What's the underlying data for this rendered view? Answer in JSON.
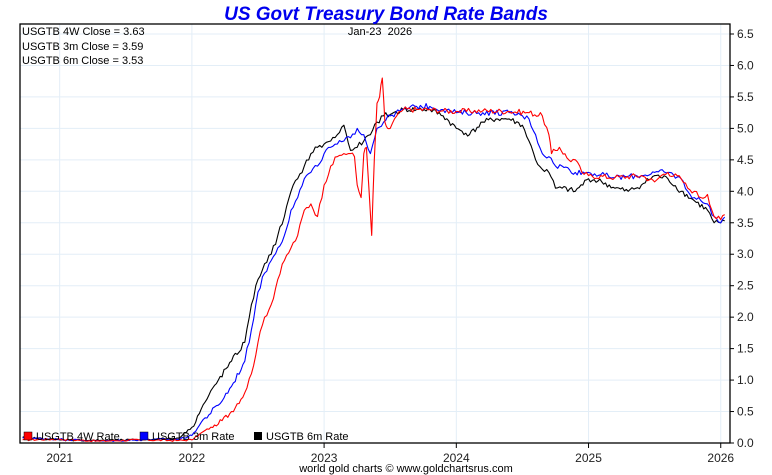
{
  "chart_data": {
    "type": "line",
    "title": "US Govt Treasury Bond Rate Bands",
    "date_label": "Jan-23  2026",
    "credit": "world gold charts © www.goldchartsrus.com",
    "closes": [
      "USGTB 4W Close = 3.63",
      "USGTB 3m Close = 3.59",
      "USGTB 6m Close = 3.53"
    ],
    "xlim": [
      2020.7,
      2026.07
    ],
    "ylim": [
      0,
      6.5
    ],
    "x_ticks": [
      "2021",
      "2022",
      "2023",
      "2024",
      "2025",
      "2026"
    ],
    "x_tick_values": [
      2021,
      2022,
      2023,
      2024,
      2025,
      2026
    ],
    "y_ticks": [
      "0.0",
      "0.5",
      "1.0",
      "1.5",
      "2.0",
      "2.5",
      "3.0",
      "3.5",
      "4.0",
      "4.5",
      "5.0",
      "5.5",
      "6.0",
      "6.5"
    ],
    "y_tick_values": [
      0,
      0.5,
      1,
      1.5,
      2,
      2.5,
      3,
      3.5,
      4,
      4.5,
      5,
      5.5,
      6,
      6.5
    ],
    "grid": true,
    "legend_position": "bottom-left",
    "series": [
      {
        "name": "USGTB 4W Rate",
        "color": "#ff0000",
        "x": [
          2020.72,
          2021.0,
          2021.3,
          2021.6,
          2021.9,
          2022.0,
          2022.1,
          2022.2,
          2022.3,
          2022.4,
          2022.45,
          2022.5,
          2022.55,
          2022.6,
          2022.65,
          2022.7,
          2022.75,
          2022.8,
          2022.85,
          2022.9,
          2022.95,
          2023.0,
          2023.05,
          2023.1,
          2023.15,
          2023.2,
          2023.23,
          2023.25,
          2023.28,
          2023.3,
          2023.32,
          2023.34,
          2023.36,
          2023.38,
          2023.4,
          2023.42,
          2023.44,
          2023.46,
          2023.48,
          2023.5,
          2023.55,
          2023.6,
          2023.7,
          2023.8,
          2023.9,
          2024.0,
          2024.2,
          2024.4,
          2024.55,
          2024.65,
          2024.7,
          2024.72,
          2024.78,
          2024.85,
          2024.9,
          2024.95,
          2025.0,
          2025.2,
          2025.4,
          2025.5,
          2025.55,
          2025.6,
          2025.7,
          2025.75,
          2025.8,
          2025.85,
          2025.9,
          2025.95,
          2026.0,
          2026.03
        ],
        "y": [
          0.05,
          0.06,
          0.03,
          0.05,
          0.04,
          0.05,
          0.2,
          0.3,
          0.5,
          0.8,
          1.1,
          1.6,
          2.0,
          2.2,
          2.6,
          2.9,
          3.1,
          3.3,
          3.7,
          3.8,
          3.6,
          4.1,
          4.4,
          4.55,
          4.6,
          4.6,
          4.55,
          4.1,
          3.9,
          4.6,
          4.7,
          4.0,
          3.3,
          4.5,
          5.4,
          5.5,
          5.8,
          5.1,
          5.0,
          5.0,
          5.2,
          5.3,
          5.3,
          5.3,
          5.28,
          5.27,
          5.28,
          5.27,
          5.25,
          5.2,
          4.9,
          4.6,
          4.7,
          4.5,
          4.5,
          4.3,
          4.25,
          4.22,
          4.25,
          4.15,
          4.25,
          4.3,
          4.2,
          4.05,
          4.0,
          3.9,
          3.95,
          3.6,
          3.55,
          3.63
        ]
      },
      {
        "name": "USGTB 3m Rate",
        "color": "#0000ff",
        "x": [
          2020.72,
          2021.0,
          2021.3,
          2021.6,
          2021.9,
          2022.0,
          2022.1,
          2022.2,
          2022.3,
          2022.4,
          2022.45,
          2022.5,
          2022.55,
          2022.6,
          2022.65,
          2022.7,
          2022.75,
          2022.8,
          2022.85,
          2022.9,
          2022.95,
          2023.0,
          2023.05,
          2023.1,
          2023.15,
          2023.2,
          2023.25,
          2023.3,
          2023.35,
          2023.4,
          2023.45,
          2023.5,
          2023.6,
          2023.7,
          2023.8,
          2023.9,
          2024.0,
          2024.2,
          2024.4,
          2024.5,
          2024.55,
          2024.6,
          2024.65,
          2024.7,
          2024.75,
          2024.8,
          2024.9,
          2025.0,
          2025.2,
          2025.4,
          2025.5,
          2025.6,
          2025.7,
          2025.75,
          2025.8,
          2025.85,
          2025.9,
          2025.95,
          2026.0,
          2026.03
        ],
        "y": [
          0.08,
          0.06,
          0.03,
          0.05,
          0.06,
          0.12,
          0.4,
          0.6,
          0.9,
          1.3,
          1.8,
          2.4,
          2.7,
          2.9,
          3.1,
          3.3,
          3.7,
          3.9,
          4.2,
          4.3,
          4.4,
          4.6,
          4.7,
          4.75,
          4.8,
          4.85,
          5.0,
          4.9,
          4.6,
          5.0,
          5.1,
          5.2,
          5.3,
          5.35,
          5.35,
          5.3,
          5.25,
          5.25,
          5.25,
          5.2,
          5.15,
          4.9,
          4.6,
          4.55,
          4.4,
          4.4,
          4.3,
          4.3,
          4.22,
          4.25,
          4.3,
          4.3,
          4.2,
          4.0,
          3.9,
          3.85,
          3.8,
          3.6,
          3.5,
          3.59
        ]
      },
      {
        "name": "USGTB 6m Rate",
        "color": "#000000",
        "x": [
          2020.72,
          2021.0,
          2021.3,
          2021.6,
          2021.9,
          2022.0,
          2022.1,
          2022.2,
          2022.3,
          2022.4,
          2022.45,
          2022.5,
          2022.55,
          2022.6,
          2022.65,
          2022.7,
          2022.75,
          2022.8,
          2022.85,
          2022.9,
          2022.95,
          2023.0,
          2023.05,
          2023.1,
          2023.15,
          2023.2,
          2023.25,
          2023.3,
          2023.35,
          2023.4,
          2023.45,
          2023.5,
          2023.6,
          2023.7,
          2023.8,
          2023.9,
          2024.0,
          2024.1,
          2024.2,
          2024.3,
          2024.4,
          2024.5,
          2024.55,
          2024.6,
          2024.65,
          2024.7,
          2024.75,
          2024.8,
          2024.9,
          2025.0,
          2025.1,
          2025.2,
          2025.3,
          2025.4,
          2025.5,
          2025.6,
          2025.7,
          2025.8,
          2025.9,
          2025.95,
          2026.0,
          2026.03
        ],
        "y": [
          0.09,
          0.05,
          0.04,
          0.05,
          0.08,
          0.25,
          0.65,
          1.0,
          1.3,
          1.6,
          2.2,
          2.6,
          2.85,
          3.0,
          3.3,
          3.6,
          4.0,
          4.2,
          4.4,
          4.6,
          4.7,
          4.75,
          4.8,
          4.9,
          5.05,
          4.65,
          4.7,
          4.8,
          4.9,
          5.1,
          5.2,
          5.22,
          5.3,
          5.3,
          5.3,
          5.2,
          5.0,
          4.9,
          5.1,
          5.15,
          5.15,
          5.05,
          4.8,
          4.5,
          4.35,
          4.3,
          4.05,
          4.05,
          4.0,
          4.2,
          4.15,
          4.05,
          4.0,
          4.1,
          4.25,
          4.2,
          4.0,
          3.85,
          3.7,
          3.5,
          3.5,
          3.53
        ]
      }
    ]
  }
}
